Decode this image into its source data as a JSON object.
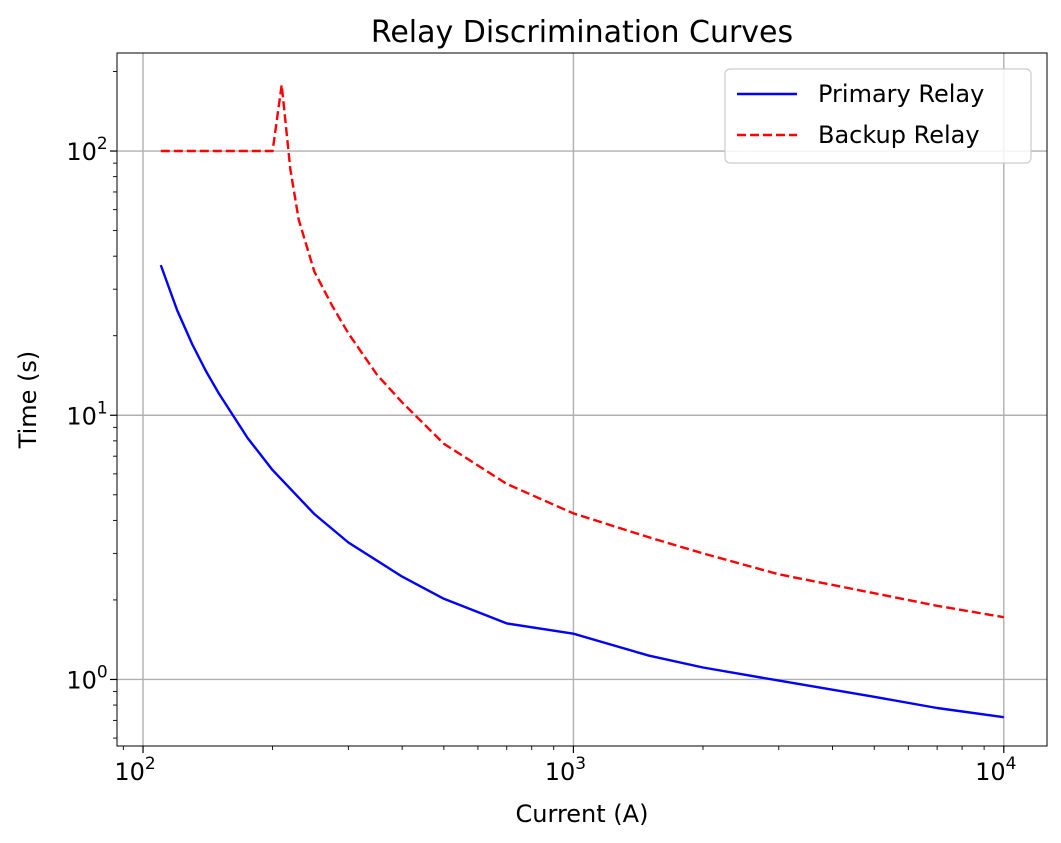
{
  "chart_data": {
    "type": "line",
    "title": "Relay Discrimination Curves",
    "xlabel": "Current (A)",
    "ylabel": "Time (s)",
    "xscale": "log",
    "yscale": "log",
    "xlim": [
      87,
      12600
    ],
    "ylim": [
      0.56,
      235
    ],
    "grid": true,
    "legend_position": "top-right",
    "x_ticks": [
      {
        "base": "10",
        "exp": "2",
        "value": 100
      },
      {
        "base": "10",
        "exp": "3",
        "value": 1000
      },
      {
        "base": "10",
        "exp": "4",
        "value": 10000
      }
    ],
    "y_ticks": [
      {
        "base": "10",
        "exp": "0",
        "value": 1
      },
      {
        "base": "10",
        "exp": "1",
        "value": 10
      },
      {
        "base": "10",
        "exp": "2",
        "value": 100
      }
    ],
    "series": [
      {
        "name": "Primary Relay",
        "color": "#0000ff",
        "style": "solid",
        "x": [
          110,
          120,
          130,
          140,
          150,
          175,
          200,
          250,
          300,
          400,
          500,
          700,
          1000,
          1500,
          2000,
          3000,
          5000,
          7000,
          10000
        ],
        "y": [
          37,
          25,
          18.6,
          14.7,
          12.1,
          8.2,
          6.2,
          4.23,
          3.3,
          2.45,
          2.02,
          1.63,
          1.49,
          1.23,
          1.11,
          0.99,
          0.86,
          0.78,
          0.72
        ]
      },
      {
        "name": "Backup Relay",
        "color": "#ff0000",
        "style": "dashed",
        "x": [
          110,
          150,
          200,
          210,
          220,
          230,
          250,
          275,
          300,
          350,
          400,
          500,
          700,
          1000,
          1500,
          2000,
          3000,
          5000,
          7000,
          10000
        ],
        "y": [
          100,
          100,
          100,
          178,
          85,
          55,
          35,
          26,
          20.4,
          14.2,
          11.2,
          7.8,
          5.5,
          4.25,
          3.45,
          3.0,
          2.5,
          2.12,
          1.9,
          1.72
        ]
      }
    ]
  }
}
